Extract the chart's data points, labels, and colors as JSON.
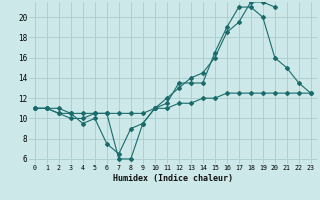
{
  "xlabel": "Humidex (Indice chaleur)",
  "background_color": "#cce8e8",
  "grid_color": "#aacccc",
  "line_color": "#1a6b6b",
  "xlim": [
    -0.5,
    23.5
  ],
  "ylim": [
    5.5,
    21.5
  ],
  "yticks": [
    6,
    8,
    10,
    12,
    14,
    16,
    18,
    20
  ],
  "xticks": [
    0,
    1,
    2,
    3,
    4,
    5,
    6,
    7,
    8,
    9,
    10,
    11,
    12,
    13,
    14,
    15,
    16,
    17,
    18,
    19,
    20,
    21,
    22,
    23
  ],
  "series": [
    {
      "x": [
        0,
        1,
        2,
        3,
        4,
        5,
        6,
        7,
        8,
        9,
        10,
        11,
        12,
        13,
        14,
        15,
        16,
        17,
        18,
        19,
        20,
        21,
        22,
        23
      ],
      "y": [
        11.0,
        11.0,
        10.5,
        10.0,
        10.0,
        10.5,
        10.5,
        6.0,
        6.0,
        9.5,
        11.0,
        11.5,
        13.5,
        13.5,
        13.5,
        16.5,
        19.0,
        21.0,
        21.0,
        20.0,
        16.0,
        15.0,
        13.5,
        12.5
      ]
    },
    {
      "x": [
        0,
        1,
        2,
        3,
        4,
        5,
        6,
        7,
        8,
        9,
        10,
        11,
        12,
        13,
        14,
        15,
        16,
        17,
        18,
        19,
        20
      ],
      "y": [
        11.0,
        11.0,
        10.5,
        10.5,
        9.5,
        10.0,
        7.5,
        6.5,
        9.0,
        9.5,
        11.0,
        12.0,
        13.0,
        14.0,
        14.5,
        16.0,
        18.5,
        19.5,
        21.5,
        21.5,
        21.0
      ]
    },
    {
      "x": [
        0,
        1,
        2,
        3,
        4,
        5,
        6,
        7,
        8,
        9,
        10,
        11,
        12,
        13,
        14,
        15,
        16,
        17,
        18,
        19,
        20,
        21,
        22,
        23
      ],
      "y": [
        11.0,
        11.0,
        11.0,
        10.5,
        10.5,
        10.5,
        10.5,
        10.5,
        10.5,
        10.5,
        11.0,
        11.0,
        11.5,
        11.5,
        12.0,
        12.0,
        12.5,
        12.5,
        12.5,
        12.5,
        12.5,
        12.5,
        12.5,
        12.5
      ]
    }
  ]
}
